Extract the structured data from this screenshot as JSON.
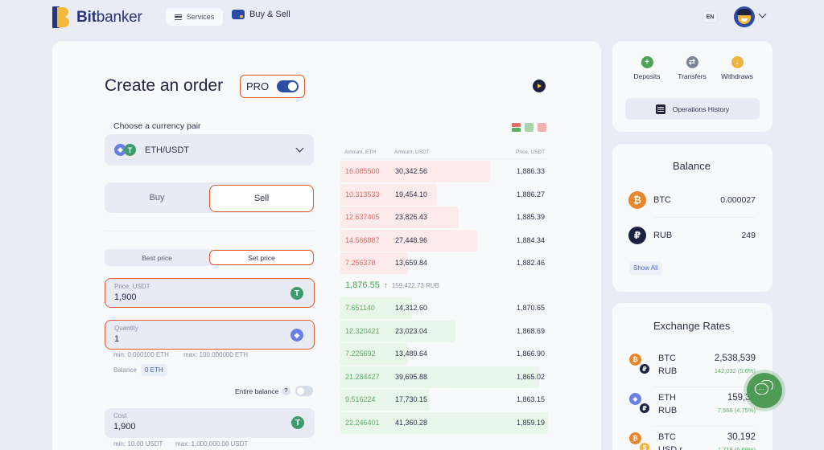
{
  "header": {
    "logo_bold": "Bit",
    "logo_light": "banker",
    "services_label": "Services",
    "buy_sell_label": "Buy & Sell",
    "language": "EN"
  },
  "order": {
    "title": "Create an order",
    "pro_label": "PRO",
    "pro_enabled": true,
    "pair_label": "Choose a currency pair",
    "pair_value": "ETH/USDT",
    "side_buy": "Buy",
    "side_sell": "Sell",
    "selected_side": "Sell",
    "mode_best": "Best price",
    "mode_set": "Set price",
    "selected_mode": "Set price",
    "price_label": "Price, USDT",
    "price_value": "1,900",
    "quantity_label": "Quantity",
    "quantity_value": "1",
    "quantity_min": "min: 0.000100 ETH",
    "quantity_max": "max: 100.000000 ETH",
    "balance_label": "Balance",
    "balance_value": "0 ETH",
    "entire_balance_label": "Entire balance",
    "help_glyph": "?",
    "entire_balance_enabled": false,
    "cost_label": "Cost",
    "cost_value": "1,900",
    "cost_min": "min: 10.00 USDT",
    "cost_max": "max: 1,000,000.00 USDT"
  },
  "orderbook": {
    "headers": {
      "amount_eth": "Amount, ETH",
      "amount_usdt": "Amount, USDT",
      "price": "Price, USDT"
    },
    "colors": {
      "ask": "#e46a66",
      "bid": "#5aae60"
    },
    "asks": [
      {
        "eth": "16.085500",
        "usdt": "30,342.56",
        "price": "1,886.33",
        "bar": 186
      },
      {
        "eth": "10.313533",
        "usdt": "19,454.10",
        "price": "1,886.27",
        "bar": 120
      },
      {
        "eth": "12.637405",
        "usdt": "23,826.43",
        "price": "1,885.39",
        "bar": 147
      },
      {
        "eth": "14.566887",
        "usdt": "27,448.96",
        "price": "1,884.34",
        "bar": 170
      },
      {
        "eth": "7.256378",
        "usdt": "13,659.84",
        "price": "1,882.46",
        "bar": 84
      }
    ],
    "mid_price": "1,876.55",
    "mid_arrow": "↑",
    "mid_rub": "159,422.73 RUB",
    "bids": [
      {
        "eth": "7.651140",
        "usdt": "14,312.60",
        "price": "1,870.65",
        "bar": 89
      },
      {
        "eth": "12.320421",
        "usdt": "23,023.04",
        "price": "1,868.69",
        "bar": 143
      },
      {
        "eth": "7.225692",
        "usdt": "13,489.64",
        "price": "1,866.90",
        "bar": 84
      },
      {
        "eth": "21.284427",
        "usdt": "39,695.88",
        "price": "1,865.02",
        "bar": 247
      },
      {
        "eth": "9.516224",
        "usdt": "17,730.15",
        "price": "1,863.15",
        "bar": 111
      },
      {
        "eth": "22.246401",
        "usdt": "41,360.28",
        "price": "1,859.19",
        "bar": 258
      }
    ]
  },
  "quick_actions": {
    "deposits": "Deposits",
    "transfers": "Transfers",
    "withdraws": "Withdraws",
    "operations_history": "Operations History"
  },
  "balance": {
    "title": "Balance",
    "items": [
      {
        "symbol": "BTC",
        "value": "0.000027",
        "glyph": "₿",
        "color": "#e8862e"
      },
      {
        "symbol": "RUB",
        "value": "249",
        "glyph": "₽",
        "color": "#1c2342"
      }
    ],
    "show_all": "Show All"
  },
  "rates": {
    "title": "Exchange Rates",
    "items": [
      {
        "base": "BTC",
        "quote": "RUB",
        "value": "2,538,539",
        "change": "142,032 (5.6%)"
      },
      {
        "base": "ETH",
        "quote": "RUB",
        "value": "159,30",
        "change": "7,568 (4.75%)"
      },
      {
        "base": "BTC",
        "quote": "USD r",
        "value": "30,192",
        "change": "1,718 (5.69%)"
      }
    ]
  }
}
